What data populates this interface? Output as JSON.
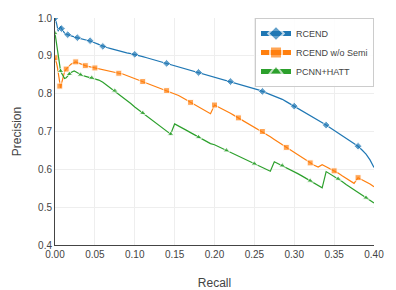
{
  "chart_data": {
    "type": "line",
    "xlabel": "Recall",
    "ylabel": "Precision",
    "xlim": [
      0.0,
      0.4
    ],
    "ylim": [
      0.4,
      1.0
    ],
    "xticks": [
      {
        "value": 0.0,
        "label": "0.00"
      },
      0.05,
      {
        "value": 0.1,
        "label": "0.10"
      },
      0.15,
      {
        "value": 0.2,
        "label": "0.20"
      },
      0.25,
      {
        "value": 0.3,
        "label": "0.30"
      },
      0.35,
      {
        "value": 0.4,
        "label": "0.40"
      }
    ],
    "yticks": [
      0.4,
      0.5,
      0.6,
      0.7,
      0.8,
      0.9,
      {
        "value": 1.0,
        "label": "1.0"
      }
    ],
    "grid": true,
    "legend": "upper right",
    "series": [
      {
        "name": "RCEND",
        "color": "#1f77b4",
        "marker": "diamond",
        "x": [
          0.0,
          0.001,
          0.002,
          0.003,
          0.004,
          0.005,
          0.006,
          0.007,
          0.008,
          0.009,
          0.01,
          0.011,
          0.012,
          0.013,
          0.014,
          0.015,
          0.016,
          0.017,
          0.018,
          0.019,
          0.02,
          0.022,
          0.024,
          0.026,
          0.028,
          0.03,
          0.032,
          0.034,
          0.036,
          0.038,
          0.04,
          0.042,
          0.044,
          0.046,
          0.048,
          0.05,
          0.052,
          0.054,
          0.056,
          0.058,
          0.06,
          0.065,
          0.07,
          0.075,
          0.08,
          0.085,
          0.09,
          0.095,
          0.1,
          0.105,
          0.11,
          0.115,
          0.12,
          0.125,
          0.13,
          0.135,
          0.14,
          0.145,
          0.15,
          0.155,
          0.16,
          0.165,
          0.17,
          0.175,
          0.18,
          0.185,
          0.19,
          0.195,
          0.2,
          0.205,
          0.21,
          0.215,
          0.22,
          0.225,
          0.23,
          0.235,
          0.24,
          0.245,
          0.25,
          0.255,
          0.26,
          0.265,
          0.27,
          0.275,
          0.28,
          0.285,
          0.29,
          0.295,
          0.3,
          0.305,
          0.31,
          0.315,
          0.32,
          0.325,
          0.33,
          0.335,
          0.34,
          0.345,
          0.35,
          0.355,
          0.36,
          0.365,
          0.37,
          0.375,
          0.38,
          0.385,
          0.39,
          0.395,
          0.4
        ],
        "values": [
          1.0,
          0.995,
          0.985,
          0.975,
          0.965,
          0.97,
          0.975,
          0.978,
          0.972,
          0.968,
          0.966,
          0.963,
          0.96,
          0.958,
          0.958,
          0.957,
          0.956,
          0.955,
          0.954,
          0.953,
          0.952,
          0.951,
          0.95,
          0.949,
          0.948,
          0.947,
          0.946,
          0.945,
          0.944,
          0.943,
          0.942,
          0.941,
          0.94,
          0.938,
          0.936,
          0.935,
          0.933,
          0.931,
          0.929,
          0.927,
          0.925,
          0.922,
          0.919,
          0.916,
          0.913,
          0.91,
          0.908,
          0.906,
          0.904,
          0.901,
          0.898,
          0.895,
          0.892,
          0.889,
          0.886,
          0.883,
          0.88,
          0.877,
          0.874,
          0.871,
          0.868,
          0.865,
          0.862,
          0.859,
          0.856,
          0.853,
          0.85,
          0.847,
          0.844,
          0.841,
          0.838,
          0.835,
          0.832,
          0.829,
          0.826,
          0.823,
          0.82,
          0.817,
          0.814,
          0.81,
          0.806,
          0.802,
          0.798,
          0.794,
          0.79,
          0.785,
          0.779,
          0.773,
          0.767,
          0.76,
          0.753,
          0.747,
          0.741,
          0.735,
          0.729,
          0.723,
          0.717,
          0.71,
          0.703,
          0.696,
          0.689,
          0.682,
          0.675,
          0.668,
          0.661,
          0.651,
          0.64,
          0.625,
          0.605
        ]
      },
      {
        "name": "RCEND w/o Semi",
        "color": "#ff7f0e",
        "marker": "square",
        "x": [
          0.0,
          0.001,
          0.002,
          0.003,
          0.004,
          0.005,
          0.006,
          0.007,
          0.008,
          0.009,
          0.01,
          0.012,
          0.014,
          0.016,
          0.018,
          0.02,
          0.022,
          0.024,
          0.026,
          0.028,
          0.03,
          0.032,
          0.034,
          0.036,
          0.038,
          0.04,
          0.042,
          0.044,
          0.046,
          0.048,
          0.05,
          0.055,
          0.06,
          0.065,
          0.07,
          0.075,
          0.08,
          0.085,
          0.09,
          0.095,
          0.1,
          0.105,
          0.11,
          0.115,
          0.12,
          0.125,
          0.13,
          0.135,
          0.14,
          0.145,
          0.15,
          0.155,
          0.16,
          0.165,
          0.17,
          0.175,
          0.18,
          0.185,
          0.19,
          0.195,
          0.2,
          0.205,
          0.21,
          0.215,
          0.22,
          0.225,
          0.23,
          0.235,
          0.24,
          0.245,
          0.25,
          0.255,
          0.26,
          0.265,
          0.27,
          0.275,
          0.28,
          0.285,
          0.29,
          0.295,
          0.3,
          0.305,
          0.31,
          0.315,
          0.32,
          0.325,
          0.33,
          0.335,
          0.34,
          0.345,
          0.35,
          0.355,
          0.36,
          0.365,
          0.37,
          0.375,
          0.38,
          0.385,
          0.39,
          0.395,
          0.4
        ],
        "values": [
          0.895,
          0.89,
          0.88,
          0.87,
          0.855,
          0.838,
          0.82,
          0.815,
          0.825,
          0.835,
          0.845,
          0.858,
          0.865,
          0.87,
          0.875,
          0.878,
          0.88,
          0.882,
          0.884,
          0.882,
          0.88,
          0.878,
          0.876,
          0.875,
          0.874,
          0.873,
          0.872,
          0.871,
          0.87,
          0.869,
          0.868,
          0.865,
          0.862,
          0.86,
          0.858,
          0.856,
          0.854,
          0.852,
          0.848,
          0.844,
          0.84,
          0.836,
          0.832,
          0.828,
          0.824,
          0.82,
          0.816,
          0.812,
          0.808,
          0.804,
          0.8,
          0.795,
          0.789,
          0.783,
          0.777,
          0.771,
          0.765,
          0.759,
          0.753,
          0.747,
          0.77,
          0.765,
          0.76,
          0.754,
          0.748,
          0.742,
          0.736,
          0.73,
          0.724,
          0.718,
          0.712,
          0.706,
          0.7,
          0.693,
          0.686,
          0.679,
          0.672,
          0.665,
          0.658,
          0.651,
          0.644,
          0.637,
          0.63,
          0.623,
          0.617,
          0.611,
          0.606,
          0.612,
          0.607,
          0.602,
          0.596,
          0.59,
          0.583,
          0.577,
          0.57,
          0.563,
          0.578,
          0.573,
          0.568,
          0.561,
          0.554
        ]
      },
      {
        "name": "PCNN+HATT",
        "color": "#2ca02c",
        "marker": "triangle-up",
        "x": [
          0.0,
          0.001,
          0.002,
          0.003,
          0.004,
          0.005,
          0.006,
          0.007,
          0.008,
          0.009,
          0.01,
          0.012,
          0.014,
          0.016,
          0.018,
          0.02,
          0.022,
          0.024,
          0.026,
          0.028,
          0.03,
          0.032,
          0.034,
          0.036,
          0.038,
          0.04,
          0.042,
          0.044,
          0.046,
          0.048,
          0.05,
          0.055,
          0.06,
          0.065,
          0.07,
          0.075,
          0.08,
          0.085,
          0.09,
          0.095,
          0.1,
          0.105,
          0.11,
          0.115,
          0.12,
          0.125,
          0.13,
          0.135,
          0.14,
          0.145,
          0.15,
          0.155,
          0.16,
          0.165,
          0.17,
          0.175,
          0.18,
          0.185,
          0.19,
          0.195,
          0.2,
          0.205,
          0.21,
          0.215,
          0.22,
          0.225,
          0.23,
          0.235,
          0.24,
          0.245,
          0.25,
          0.255,
          0.26,
          0.265,
          0.27,
          0.275,
          0.28,
          0.285,
          0.29,
          0.295,
          0.3,
          0.305,
          0.31,
          0.315,
          0.32,
          0.325,
          0.33,
          0.335,
          0.34,
          0.345,
          0.35,
          0.355,
          0.36,
          0.365,
          0.37,
          0.375,
          0.38,
          0.385,
          0.39,
          0.395,
          0.4
        ],
        "values": [
          0.96,
          0.945,
          0.93,
          0.915,
          0.9,
          0.885,
          0.87,
          0.86,
          0.855,
          0.85,
          0.845,
          0.84,
          0.842,
          0.848,
          0.852,
          0.856,
          0.858,
          0.86,
          0.858,
          0.855,
          0.852,
          0.85,
          0.848,
          0.847,
          0.846,
          0.845,
          0.844,
          0.843,
          0.842,
          0.841,
          0.84,
          0.836,
          0.83,
          0.822,
          0.815,
          0.808,
          0.8,
          0.792,
          0.783,
          0.774,
          0.765,
          0.757,
          0.749,
          0.741,
          0.733,
          0.725,
          0.717,
          0.709,
          0.701,
          0.693,
          0.72,
          0.715,
          0.709,
          0.703,
          0.697,
          0.691,
          0.685,
          0.679,
          0.673,
          0.668,
          0.665,
          0.66,
          0.655,
          0.65,
          0.645,
          0.64,
          0.635,
          0.63,
          0.625,
          0.62,
          0.615,
          0.61,
          0.605,
          0.6,
          0.595,
          0.62,
          0.615,
          0.61,
          0.605,
          0.6,
          0.594,
          0.588,
          0.582,
          0.576,
          0.57,
          0.563,
          0.557,
          0.551,
          0.594,
          0.588,
          0.582,
          0.575,
          0.568,
          0.56,
          0.553,
          0.546,
          0.539,
          0.532,
          0.525,
          0.518,
          0.511
        ]
      }
    ]
  }
}
